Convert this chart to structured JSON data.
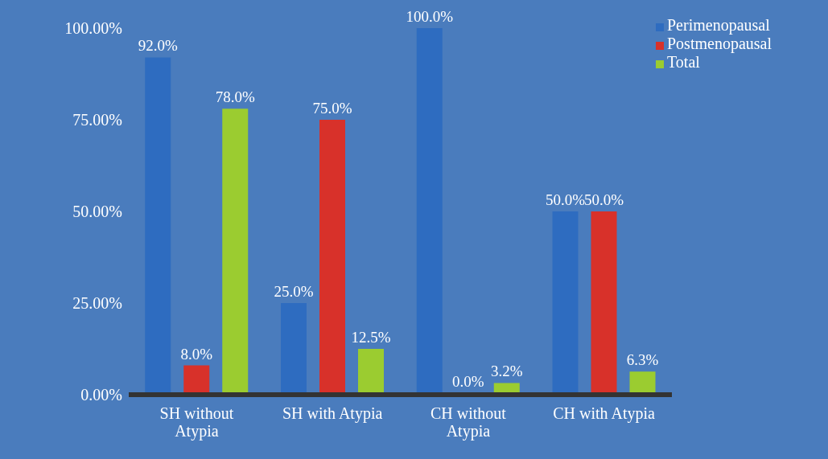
{
  "chart_data": {
    "type": "bar",
    "categories": [
      "SH without Atypia",
      "SH with Atypia",
      "CH without Atypia",
      "CH with Atypia"
    ],
    "series": [
      {
        "name": "Perimenopausal",
        "color": "#2e6cc0",
        "values": [
          92,
          25,
          100,
          50
        ],
        "value_labels": [
          "92.0%",
          "25.0%",
          "100.0%",
          "50.0%"
        ]
      },
      {
        "name": "Postmenopausal",
        "color": "#d8312a",
        "values": [
          8,
          75,
          0,
          50
        ],
        "value_labels": [
          "8.0%",
          "75.0%",
          "0.0%",
          "50.0%"
        ]
      },
      {
        "name": "Total",
        "color": "#9bcc30",
        "values": [
          78,
          12.5,
          3.2,
          6.3
        ],
        "value_labels": [
          "78.0%",
          "12.5%",
          "3.2%",
          "6.3%"
        ]
      }
    ],
    "ylim": [
      0,
      100
    ],
    "yticks": [
      {
        "value": 0,
        "label": "0.00%"
      },
      {
        "value": 25,
        "label": "25.00%"
      },
      {
        "value": 50,
        "label": "50.00%"
      },
      {
        "value": 75,
        "label": "75.00%"
      },
      {
        "value": 100,
        "label": "100.00%"
      }
    ],
    "grid": false,
    "legend": "top right"
  }
}
